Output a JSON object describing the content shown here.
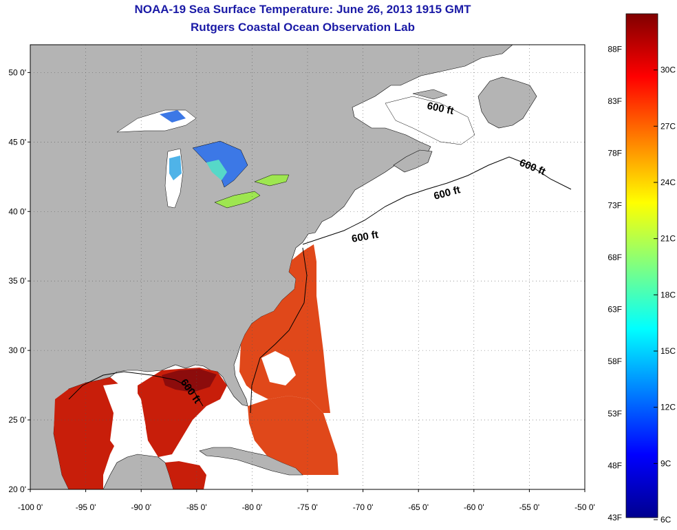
{
  "title": {
    "line1": "NOAA-19 Sea Surface Temperature:  June 26, 2013 1915 GMT",
    "line2": "Rutgers Coastal Ocean Observation Lab"
  },
  "map": {
    "lon_range": [
      -100,
      -50
    ],
    "lat_range": [
      20,
      52
    ],
    "x_ticks": [
      {
        "lon": -100,
        "label": "-100 0'"
      },
      {
        "lon": -95,
        "label": "-95 0'"
      },
      {
        "lon": -90,
        "label": "-90 0'"
      },
      {
        "lon": -85,
        "label": "-85 0'"
      },
      {
        "lon": -80,
        "label": "-80 0'"
      },
      {
        "lon": -75,
        "label": "-75 0'"
      },
      {
        "lon": -70,
        "label": "-70 0'"
      },
      {
        "lon": -65,
        "label": "-65 0'"
      },
      {
        "lon": -60,
        "label": "-60 0'"
      },
      {
        "lon": -55,
        "label": "-55 0'"
      },
      {
        "lon": -50,
        "label": "-50 0'"
      }
    ],
    "y_ticks": [
      {
        "lat": 20,
        "label": "20 0'"
      },
      {
        "lat": 25,
        "label": "25 0'"
      },
      {
        "lat": 30,
        "label": "30 0'"
      },
      {
        "lat": 35,
        "label": "35 0'"
      },
      {
        "lat": 40,
        "label": "40 0'"
      },
      {
        "lat": 45,
        "label": "45 0'"
      },
      {
        "lat": 50,
        "label": "50 0'"
      }
    ],
    "contour_labels": [
      "600 ft",
      "600 ft",
      "600 ft",
      "600 ft",
      "600 ft"
    ],
    "colors": {
      "land": "#b4b4b4",
      "ocean_nodata": "#ffffff",
      "gulf_sst": "#c81e0a",
      "gulf_hot": "#8c0c0c",
      "atlantic_sst": "#e0481a",
      "lake_cold": "#3c78e6",
      "lake_warm": "#9ee650"
    }
  },
  "colorbar": {
    "stops": [
      "#00008f",
      "#0000ff",
      "#0080ff",
      "#00ffff",
      "#80ff80",
      "#ffff00",
      "#ff8000",
      "#ff0000",
      "#800000"
    ],
    "f_labels": [
      {
        "value": 43,
        "label": "43F"
      },
      {
        "value": 48,
        "label": "48F"
      },
      {
        "value": 53,
        "label": "53F"
      },
      {
        "value": 58,
        "label": "58F"
      },
      {
        "value": 63,
        "label": "63F"
      },
      {
        "value": 68,
        "label": "68F"
      },
      {
        "value": 73,
        "label": "73F"
      },
      {
        "value": 78,
        "label": "78F"
      },
      {
        "value": 83,
        "label": "83F"
      },
      {
        "value": 88,
        "label": "88F"
      }
    ],
    "c_labels": [
      {
        "value": 6,
        "label": "6C"
      },
      {
        "value": 9,
        "label": "9C"
      },
      {
        "value": 12,
        "label": "12C"
      },
      {
        "value": 15,
        "label": "15C"
      },
      {
        "value": 18,
        "label": "18C"
      },
      {
        "value": 21,
        "label": "21C"
      },
      {
        "value": 24,
        "label": "24C"
      },
      {
        "value": 27,
        "label": "27C"
      },
      {
        "value": 30,
        "label": "30C"
      }
    ]
  }
}
